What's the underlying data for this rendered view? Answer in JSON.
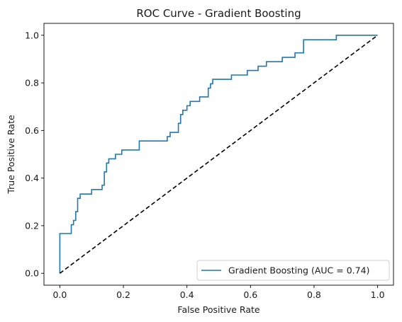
{
  "chart_data": {
    "type": "line",
    "title": "ROC Curve - Gradient Boosting",
    "xlabel": "False Positive Rate",
    "ylabel": "True Positive Rate",
    "xlim": [
      -0.05,
      1.05
    ],
    "ylim": [
      -0.05,
      1.05
    ],
    "xticks": [
      "0.0",
      "0.2",
      "0.4",
      "0.6",
      "0.8",
      "1.0"
    ],
    "yticks": [
      "0.0",
      "0.2",
      "0.4",
      "0.6",
      "0.8",
      "1.0"
    ],
    "grid": false,
    "legend_position": "lower-right",
    "series": [
      {
        "name": "Gradient Boosting (AUC = 0.74)",
        "color": "#1f77b4",
        "style": "solid",
        "x": [
          0,
          0,
          0.036,
          0.036,
          0.043,
          0.043,
          0.05,
          0.05,
          0.056,
          0.056,
          0.064,
          0.064,
          0.067,
          0.067,
          0.1,
          0.1,
          0.133,
          0.133,
          0.14,
          0.14,
          0.147,
          0.147,
          0.154,
          0.154,
          0.175,
          0.175,
          0.195,
          0.195,
          0.25,
          0.25,
          0.338,
          0.338,
          0.347,
          0.347,
          0.373,
          0.373,
          0.38,
          0.38,
          0.387,
          0.387,
          0.4,
          0.4,
          0.41,
          0.41,
          0.44,
          0.44,
          0.467,
          0.467,
          0.474,
          0.474,
          0.481,
          0.481,
          0.54,
          0.54,
          0.59,
          0.59,
          0.624,
          0.624,
          0.65,
          0.65,
          0.7,
          0.7,
          0.74,
          0.74,
          0.767,
          0.767,
          0.87,
          0.87,
          1.0
        ],
        "y": [
          0,
          0.167,
          0.167,
          0.204,
          0.204,
          0.222,
          0.222,
          0.259,
          0.259,
          0.315,
          0.315,
          0.333,
          0.333,
          0.333,
          0.333,
          0.352,
          0.352,
          0.37,
          0.37,
          0.426,
          0.426,
          0.463,
          0.463,
          0.481,
          0.481,
          0.5,
          0.5,
          0.518,
          0.518,
          0.556,
          0.556,
          0.574,
          0.574,
          0.592,
          0.592,
          0.63,
          0.63,
          0.667,
          0.667,
          0.685,
          0.685,
          0.704,
          0.704,
          0.722,
          0.722,
          0.741,
          0.741,
          0.778,
          0.778,
          0.796,
          0.796,
          0.815,
          0.815,
          0.833,
          0.833,
          0.852,
          0.852,
          0.87,
          0.87,
          0.889,
          0.889,
          0.907,
          0.907,
          0.926,
          0.926,
          0.981,
          0.981,
          1.0,
          1.0
        ]
      },
      {
        "name": "",
        "color": "#000000",
        "style": "dashed",
        "x": [
          0,
          1
        ],
        "y": [
          0,
          1
        ]
      }
    ]
  }
}
